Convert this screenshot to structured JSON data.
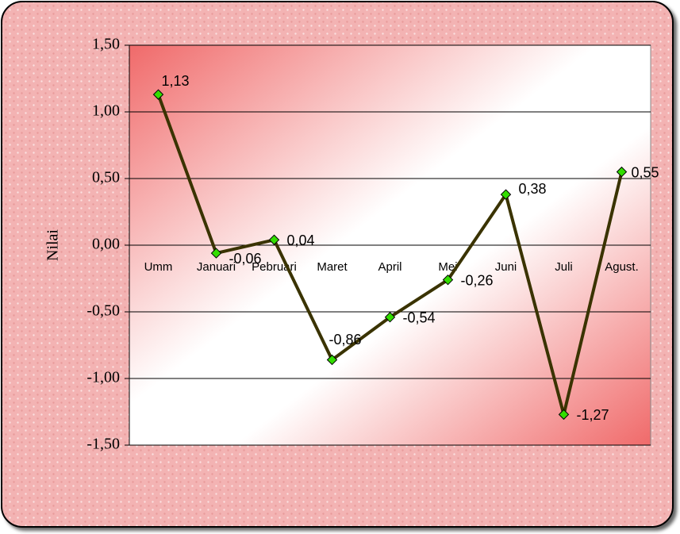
{
  "chart_data": {
    "type": "line",
    "y_label": "Nilai",
    "categories": [
      "Umm",
      "Januari",
      "Pebruari",
      "Maret",
      "April",
      "Mei",
      "Juni",
      "Juli",
      "Agust."
    ],
    "series": [
      {
        "color": "#3a3300",
        "marker_color": "#33dd00",
        "values": [
          1.13,
          -0.06,
          0.04,
          -0.86,
          -0.54,
          -0.26,
          0.38,
          -1.27,
          0.55
        ],
        "value_labels": [
          "1,13",
          "-0,06",
          "0,04",
          "-0,86",
          "-0,54",
          "-0,26",
          "0,38",
          "-1,27",
          "0,55"
        ]
      }
    ],
    "ylim": [
      -1.5,
      1.5
    ],
    "yticks": [
      {
        "value": -1.5,
        "label": "-1,50"
      },
      {
        "value": -1,
        "label": "-1,00"
      },
      {
        "value": -0.5,
        "label": "-0,50"
      },
      {
        "value": 0,
        "label": "0,00"
      },
      {
        "value": 0.5,
        "label": "0,50"
      },
      {
        "value": 1,
        "label": "1,00"
      },
      {
        "value": 1.5,
        "label": "1,50"
      }
    ],
    "grid": true
  }
}
